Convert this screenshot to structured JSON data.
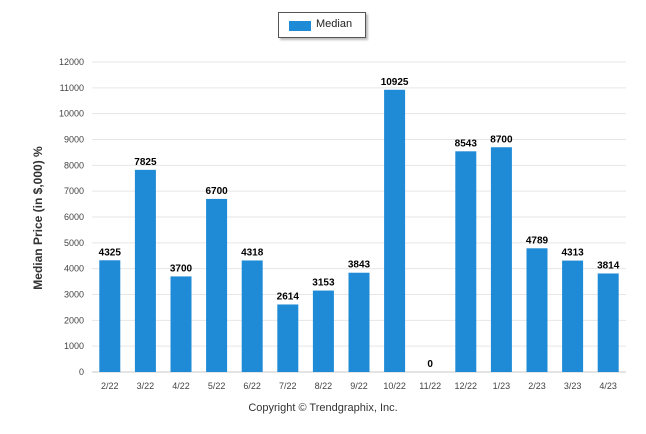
{
  "legend": {
    "label": "Median",
    "color": "#1f8bd6"
  },
  "copyright": "Copyright © Trendgraphix, Inc.",
  "chart_data": {
    "type": "bar",
    "title": "",
    "xlabel": "",
    "ylabel": "Median Price (in $,000) %",
    "categories": [
      "2/22",
      "3/22",
      "4/22",
      "5/22",
      "6/22",
      "7/22",
      "8/22",
      "9/22",
      "10/22",
      "11/22",
      "12/22",
      "1/23",
      "2/23",
      "3/23",
      "4/23"
    ],
    "series": [
      {
        "name": "Median",
        "color": "#1f8bd6",
        "values": [
          4325,
          7825,
          3700,
          6700,
          4318,
          2614,
          3153,
          3843,
          10925,
          0,
          8543,
          8700,
          4789,
          4313,
          3814
        ]
      }
    ],
    "ylim": [
      0,
      12000
    ],
    "yticks": [
      0,
      1000,
      2000,
      3000,
      4000,
      5000,
      6000,
      7000,
      8000,
      9000,
      10000,
      11000,
      12000
    ],
    "grid": true,
    "legend_position": "top-center"
  }
}
